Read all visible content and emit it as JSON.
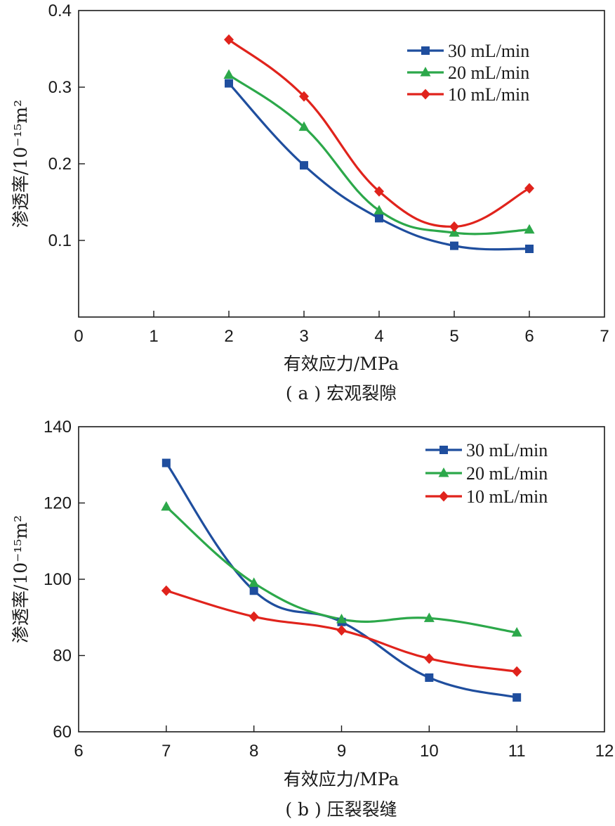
{
  "chart_data": [
    {
      "type": "line",
      "xlabel": "有效应力/MPa",
      "ylabel": "渗透率/10⁻¹⁵m²",
      "caption": "( a ) 宏观裂隙",
      "xlim": [
        0,
        7
      ],
      "ylim": [
        0,
        0.4
      ],
      "xticks": [
        "0",
        "1",
        "2",
        "3",
        "4",
        "5",
        "6",
        "7"
      ],
      "yticks": [
        "0.1",
        "0.2",
        "0.3",
        "0.4"
      ],
      "ytick_values": [
        0.1,
        0.2,
        0.3,
        0.4
      ],
      "xtick_values": [
        0,
        1,
        2,
        3,
        4,
        5,
        6,
        7
      ],
      "grid": false,
      "legend_position": "top-right",
      "series": [
        {
          "name": "30 mL/min",
          "color": "#1f4e9e",
          "marker": "square",
          "x": [
            2,
            3,
            4,
            5,
            6
          ],
          "y": [
            0.305,
            0.198,
            0.129,
            0.093,
            0.089
          ]
        },
        {
          "name": "20 mL/min",
          "color": "#2ca84a",
          "marker": "triangle",
          "x": [
            2,
            3,
            4,
            5,
            6
          ],
          "y": [
            0.316,
            0.248,
            0.139,
            0.11,
            0.114
          ]
        },
        {
          "name": "10 mL/min",
          "color": "#e0231c",
          "marker": "diamond",
          "x": [
            2,
            3,
            4,
            5,
            6
          ],
          "y": [
            0.362,
            0.288,
            0.164,
            0.118,
            0.168
          ]
        }
      ]
    },
    {
      "type": "line",
      "xlabel": "有效应力/MPa",
      "ylabel": "渗透率/10⁻¹⁵m²",
      "caption": "( b ) 压裂裂缝",
      "xlim": [
        6,
        12
      ],
      "ylim": [
        60,
        140
      ],
      "xticks": [
        "6",
        "7",
        "8",
        "9",
        "10",
        "11",
        "12"
      ],
      "yticks": [
        "60",
        "80",
        "100",
        "120",
        "140"
      ],
      "ytick_values": [
        60,
        80,
        100,
        120,
        140
      ],
      "xtick_values": [
        6,
        7,
        8,
        9,
        10,
        11,
        12
      ],
      "grid": false,
      "legend_position": "top-right",
      "series": [
        {
          "name": "30 mL/min",
          "color": "#1f4e9e",
          "marker": "square",
          "x": [
            7,
            8,
            9,
            10,
            11
          ],
          "y": [
            130.5,
            97.0,
            88.8,
            74.2,
            69.0
          ]
        },
        {
          "name": "20 mL/min",
          "color": "#2ca84a",
          "marker": "triangle",
          "x": [
            7,
            8,
            9,
            10,
            11
          ],
          "y": [
            119.0,
            99.0,
            89.5,
            89.8,
            86.0
          ]
        },
        {
          "name": "10 mL/min",
          "color": "#e0231c",
          "marker": "diamond",
          "x": [
            7,
            8,
            9,
            10,
            11
          ],
          "y": [
            97.0,
            90.2,
            86.6,
            79.2,
            75.8
          ]
        }
      ]
    }
  ]
}
